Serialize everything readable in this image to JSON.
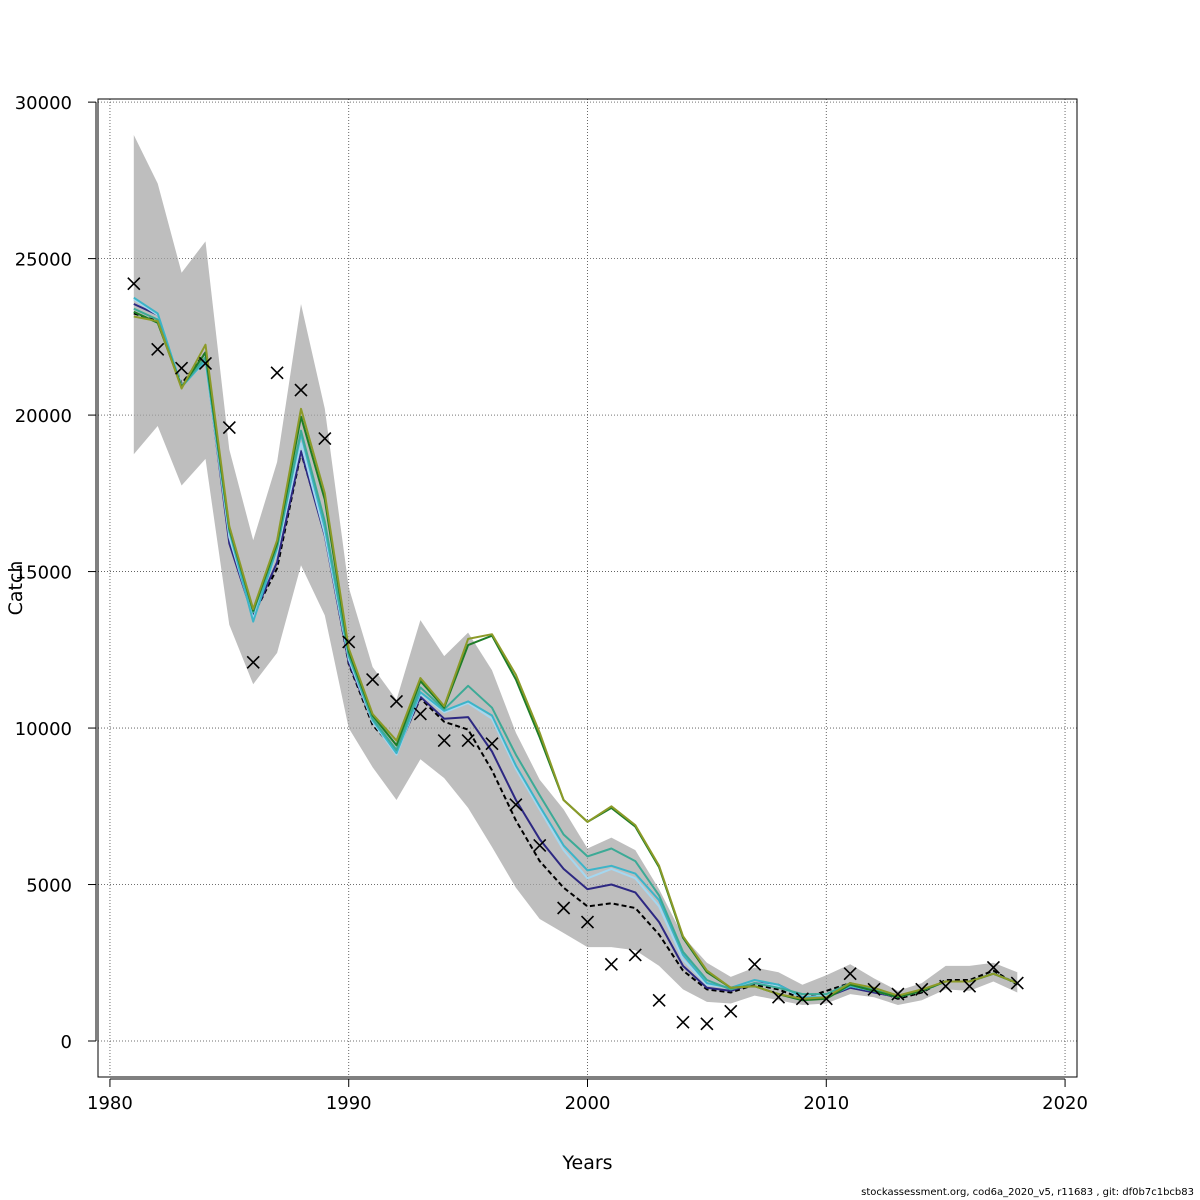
{
  "chart_data": {
    "type": "line",
    "xlabel": "Years",
    "ylabel": "Catch",
    "xlim": [
      1979.5,
      2020.5
    ],
    "ylim": [
      -1150,
      30100
    ],
    "xticks": [
      1980,
      1990,
      2000,
      2010,
      2020
    ],
    "yticks": [
      0,
      5000,
      10000,
      15000,
      20000,
      25000,
      30000
    ],
    "grid": true,
    "x": [
      1981,
      1982,
      1983,
      1984,
      1985,
      1986,
      1987,
      1988,
      1989,
      1990,
      1991,
      1992,
      1993,
      1994,
      1995,
      1996,
      1997,
      1998,
      1999,
      2000,
      2001,
      2002,
      2003,
      2004,
      2005,
      2006,
      2007,
      2008,
      2009,
      2010,
      2011,
      2012,
      2013,
      2014,
      2015,
      2016,
      2017,
      2018
    ],
    "confidence_band": {
      "color": "#bebebe",
      "upper": [
        28950,
        27400,
        24550,
        25550,
        18900,
        16000,
        18500,
        23550,
        20200,
        14500,
        11950,
        10900,
        13450,
        12300,
        13050,
        11850,
        9850,
        8350,
        7400,
        6150,
        6500,
        6100,
        4850,
        3350,
        2500,
        2050,
        2350,
        2200,
        1800,
        2100,
        2450,
        2000,
        1600,
        1850,
        2400,
        2400,
        2500,
        2200
      ],
      "lower": [
        18750,
        19650,
        17750,
        18600,
        13300,
        11400,
        12400,
        15200,
        13600,
        10000,
        8750,
        7700,
        9000,
        8400,
        7450,
        6200,
        4900,
        3900,
        3450,
        3000,
        3000,
        2900,
        2400,
        1650,
        1250,
        1200,
        1450,
        1300,
        1150,
        1200,
        1500,
        1400,
        1150,
        1300,
        1650,
        1600,
        1900,
        1550
      ]
    },
    "series": [
      {
        "color": "#000000",
        "dashed": true,
        "values": [
          23250,
          23000,
          21000,
          22000,
          16100,
          13600,
          15100,
          18800,
          16250,
          12050,
          10100,
          9250,
          10950,
          10200,
          9950,
          8650,
          7050,
          5750,
          4900,
          4300,
          4400,
          4250,
          3400,
          2250,
          1650,
          1550,
          1800,
          1650,
          1350,
          1600,
          1850,
          1650,
          1350,
          1550,
          1950,
          1950,
          2250,
          1800
        ]
      },
      {
        "color": "#2d2882",
        "dashed": false,
        "values": [
          23550,
          23200,
          20900,
          21800,
          15900,
          13550,
          15300,
          18850,
          16150,
          12100,
          10200,
          9200,
          11000,
          10300,
          10350,
          9250,
          7700,
          6450,
          5500,
          4850,
          5000,
          4750,
          3800,
          2400,
          1700,
          1600,
          1850,
          1800,
          1400,
          1400,
          1700,
          1550,
          1400,
          1600,
          1900,
          1900,
          2150,
          1850
        ]
      },
      {
        "color": "#a4d7f0",
        "dashed": false,
        "values": [
          23700,
          23200,
          20950,
          21700,
          16100,
          13500,
          15650,
          19100,
          16200,
          12200,
          10200,
          9150,
          11100,
          10500,
          10800,
          10300,
          8700,
          7400,
          6100,
          5200,
          5500,
          5200,
          4300,
          2600,
          1800,
          1700,
          1850,
          1750,
          1400,
          1450,
          1750,
          1600,
          1400,
          1600,
          1900,
          1900,
          2150,
          1850
        ]
      },
      {
        "color": "#3cb4c8",
        "dashed": false,
        "values": [
          23750,
          23250,
          20900,
          21750,
          16300,
          13400,
          15750,
          19400,
          16400,
          12300,
          10250,
          9200,
          11150,
          10550,
          10850,
          10400,
          8800,
          7500,
          6250,
          5450,
          5600,
          5350,
          4500,
          2750,
          1850,
          1700,
          1950,
          1800,
          1400,
          1400,
          1750,
          1600,
          1400,
          1600,
          1900,
          1900,
          2150,
          1850
        ]
      },
      {
        "color": "#3caa96",
        "dashed": false,
        "values": [
          23400,
          23050,
          20900,
          21850,
          16300,
          13700,
          15800,
          19500,
          16600,
          12350,
          10300,
          9300,
          11300,
          10600,
          11350,
          10650,
          9150,
          7850,
          6600,
          5900,
          6150,
          5750,
          4650,
          2850,
          1950,
          1650,
          1850,
          1700,
          1500,
          1500,
          1850,
          1650,
          1400,
          1600,
          1900,
          1900,
          2150,
          1850
        ]
      },
      {
        "color": "#1e7d28",
        "dashed": false,
        "values": [
          23300,
          22950,
          20900,
          22000,
          16400,
          13750,
          15900,
          19950,
          17300,
          12450,
          10400,
          9450,
          11500,
          10650,
          12650,
          12950,
          11550,
          9700,
          7700,
          7000,
          7450,
          6850,
          5550,
          3300,
          2200,
          1700,
          1750,
          1500,
          1300,
          1350,
          1800,
          1600,
          1400,
          1600,
          1900,
          1900,
          2150,
          1850
        ]
      },
      {
        "color": "#8c9a28",
        "dashed": false,
        "values": [
          23150,
          23000,
          20850,
          22250,
          16450,
          13800,
          16000,
          20200,
          17500,
          12550,
          10450,
          9600,
          11600,
          10700,
          12850,
          13000,
          11700,
          9850,
          7700,
          7000,
          7500,
          6900,
          5600,
          3350,
          2250,
          1700,
          1750,
          1500,
          1350,
          1400,
          1850,
          1700,
          1450,
          1650,
          1900,
          1900,
          2150,
          1850
        ]
      }
    ],
    "observed": {
      "marker": "x",
      "color": "#000000",
      "values": [
        24200,
        22100,
        21500,
        21650,
        19600,
        12100,
        21350,
        20800,
        19250,
        12750,
        11550,
        10850,
        10450,
        9600,
        9600,
        9500,
        7550,
        6250,
        4250,
        3800,
        2450,
        2750,
        1300,
        600,
        550,
        950,
        2450,
        1400,
        1350,
        1350,
        2150,
        1650,
        1500,
        1650,
        1750,
        1750,
        2350,
        1850
      ]
    }
  },
  "footer": "stockassessment.org, cod6a_2020_v5, r11683 , git: df0b7c1bcb83"
}
